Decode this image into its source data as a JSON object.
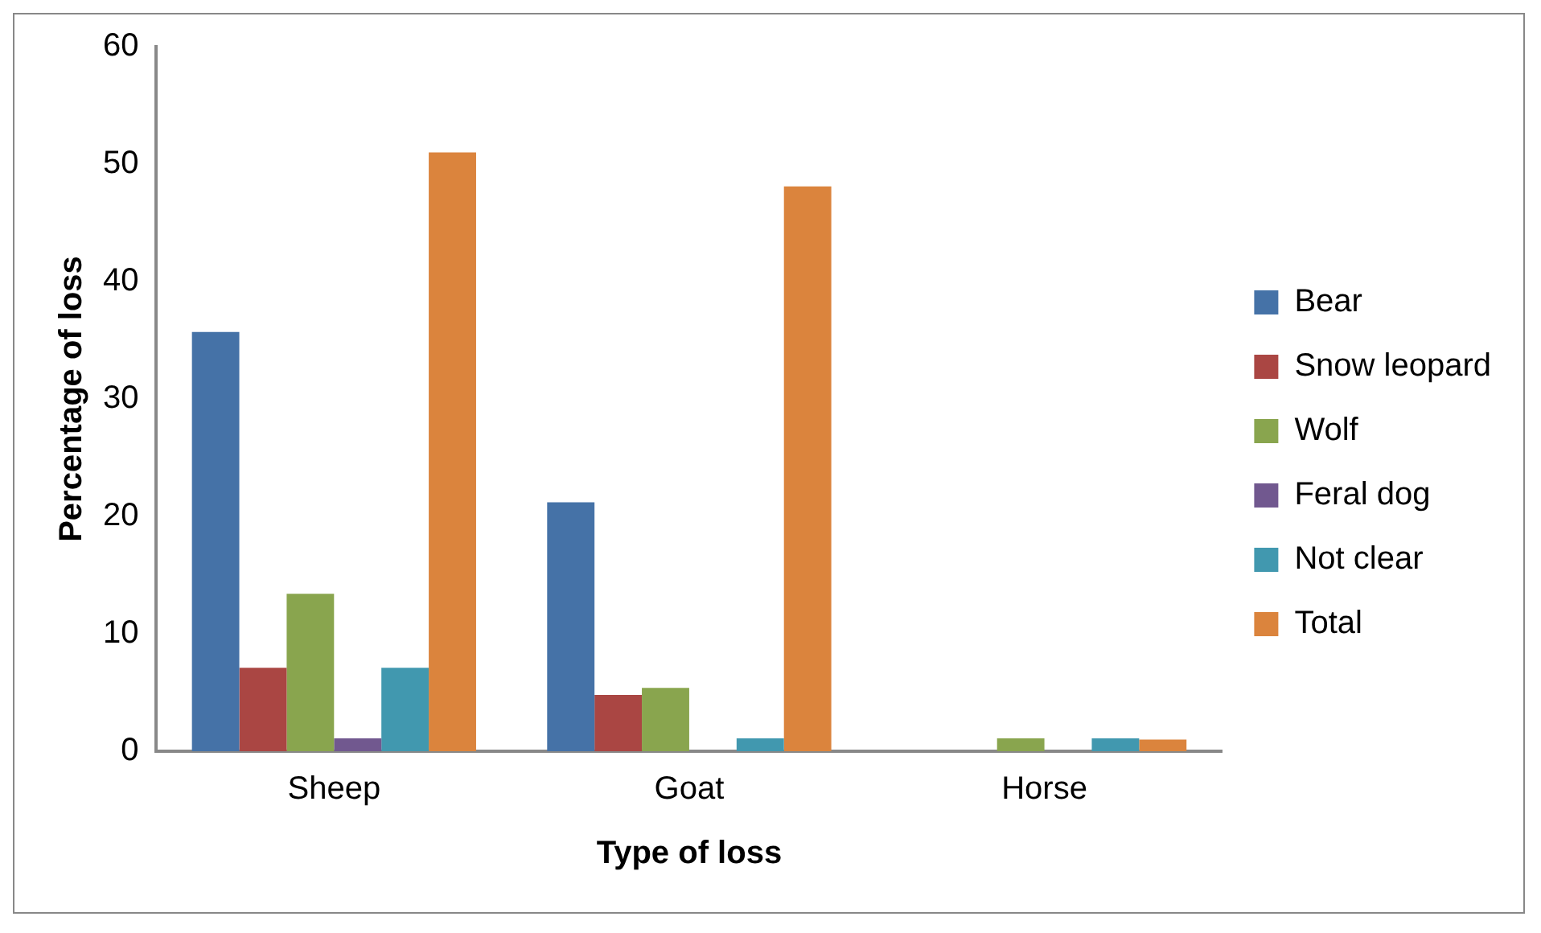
{
  "chart_data": {
    "type": "bar",
    "xlabel": "Type of loss",
    "ylabel": "Percentage of loss",
    "categories": [
      "Sheep",
      "Goat",
      "Horse"
    ],
    "series": [
      {
        "name": "Bear",
        "color": "#4572a7",
        "values": [
          35.7,
          21.2,
          0
        ]
      },
      {
        "name": "Snow leopard",
        "color": "#aa4643",
        "values": [
          7.1,
          4.8,
          0
        ]
      },
      {
        "name": "Wolf",
        "color": "#89a54e",
        "values": [
          13.4,
          5.4,
          1.1
        ]
      },
      {
        "name": "Feral dog",
        "color": "#71588f",
        "values": [
          1.1,
          0,
          0
        ]
      },
      {
        "name": "Not clear",
        "color": "#4198af",
        "values": [
          7.1,
          1.1,
          1.1
        ]
      },
      {
        "name": "Total",
        "color": "#db843d",
        "values": [
          51,
          48.1,
          1.0
        ]
      }
    ],
    "ylim": [
      0,
      60
    ],
    "yticks": [
      0,
      10,
      20,
      30,
      40,
      50,
      60
    ],
    "grid": false,
    "legend": "right"
  }
}
